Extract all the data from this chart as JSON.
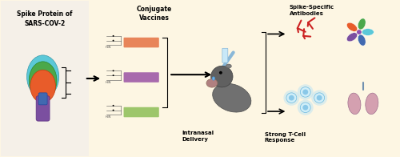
{
  "bg_color": "#fdf6e3",
  "left_bg": "#ffffff",
  "title_left": "Spike Protein of\nSARS-COV-2",
  "label_conjugate": "Conjugate\nVaccines",
  "label_intranasal": "Intranasal\nDelivery",
  "label_antibodies": "Spike-Specific\nAntibodies",
  "label_tcell": "Strong T-Cell\nResponse",
  "bar_colors": [
    "#e8855a",
    "#a86aad",
    "#9dc66b"
  ],
  "spike_colors": [
    "#5bc8d8",
    "#4ba84a",
    "#e85c2a",
    "#7b4fa0",
    "#4169b0"
  ],
  "antibody_color": "#cc2222",
  "tcell_color": "#5ab8e8",
  "lung_color": "#c9a0b0"
}
